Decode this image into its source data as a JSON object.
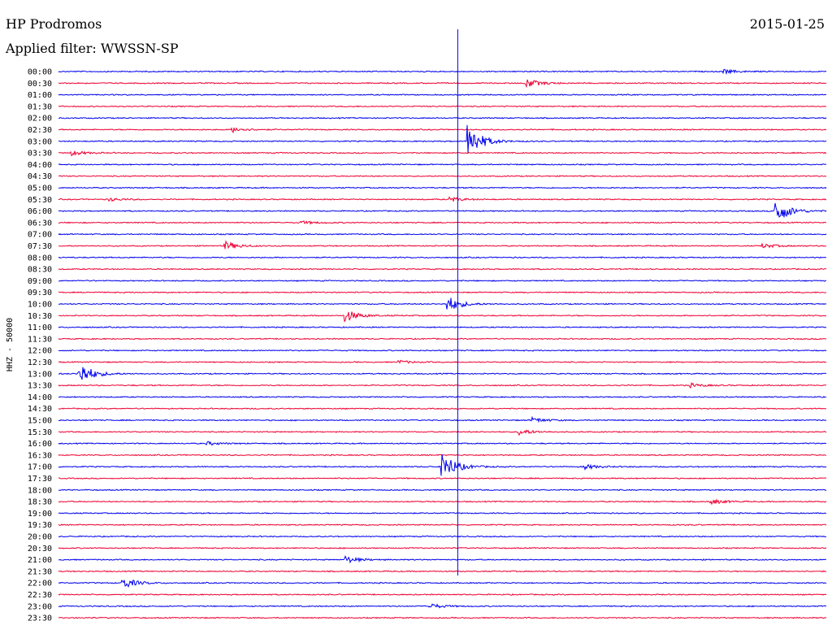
{
  "header": {
    "station": "HP Prodromos",
    "date": "2015-01-25",
    "filter_label": "Applied filter: WWSSN-SP"
  },
  "chart_data": {
    "type": "line",
    "title": "HP Prodromos",
    "subtitle": "Applied filter: WWSSN-SP",
    "ylabel": "HHZ - 50000",
    "xlabel": "",
    "colors": [
      "#0000ee",
      "#ee0033"
    ],
    "grid": false,
    "ticks": [
      "00:00",
      "00:30",
      "01:00",
      "01:30",
      "02:00",
      "02:30",
      "03:00",
      "03:30",
      "04:00",
      "04:30",
      "05:00",
      "05:30",
      "06:00",
      "06:30",
      "07:00",
      "07:30",
      "08:00",
      "08:30",
      "09:00",
      "09:30",
      "10:00",
      "10:30",
      "11:00",
      "11:30",
      "12:00",
      "12:30",
      "13:00",
      "13:30",
      "14:00",
      "14:30",
      "15:00",
      "15:30",
      "16:00",
      "16:30",
      "17:00",
      "17:30",
      "18:00",
      "18:30",
      "19:00",
      "19:30",
      "20:00",
      "20:30",
      "21:00",
      "21:30",
      "22:00",
      "22:30",
      "23:00",
      "23:30"
    ],
    "events": [
      {
        "trace": "00:00",
        "minute": 26.0,
        "amplitude": 0.45
      },
      {
        "trace": "00:30",
        "minute": 18.3,
        "amplitude": 1.0
      },
      {
        "trace": "02:30",
        "minute": 6.8,
        "amplitude": 0.6
      },
      {
        "trace": "03:00",
        "minute": 16.0,
        "amplitude": 4.0
      },
      {
        "trace": "03:30",
        "minute": 0.5,
        "amplitude": 0.55
      },
      {
        "trace": "05:30",
        "minute": 2.0,
        "amplitude": 0.35
      },
      {
        "trace": "05:30",
        "minute": 15.3,
        "amplitude": 0.5
      },
      {
        "trace": "06:00",
        "minute": 28.0,
        "amplitude": 3.0
      },
      {
        "trace": "06:30",
        "minute": 9.5,
        "amplitude": 0.35
      },
      {
        "trace": "07:30",
        "minute": 6.5,
        "amplitude": 1.0
      },
      {
        "trace": "07:30",
        "minute": 27.5,
        "amplitude": 0.5
      },
      {
        "trace": "10:00",
        "minute": 15.2,
        "amplitude": 1.8
      },
      {
        "trace": "10:30",
        "minute": 11.2,
        "amplitude": 1.4
      },
      {
        "trace": "12:30",
        "minute": 13.3,
        "amplitude": 0.35
      },
      {
        "trace": "13:00",
        "minute": 0.8,
        "amplitude": 2.8
      },
      {
        "trace": "13:30",
        "minute": 24.7,
        "amplitude": 0.4
      },
      {
        "trace": "15:00",
        "minute": 18.5,
        "amplitude": 0.6
      },
      {
        "trace": "15:30",
        "minute": 18.0,
        "amplitude": 0.7
      },
      {
        "trace": "16:00",
        "minute": 5.8,
        "amplitude": 0.4
      },
      {
        "trace": "17:00",
        "minute": 15.0,
        "amplitude": 3.2
      },
      {
        "trace": "17:00",
        "minute": 20.5,
        "amplitude": 0.6
      },
      {
        "trace": "18:30",
        "minute": 25.5,
        "amplitude": 0.6
      },
      {
        "trace": "21:00",
        "minute": 11.2,
        "amplitude": 0.8
      },
      {
        "trace": "22:00",
        "minute": 2.5,
        "amplitude": 1.3
      },
      {
        "trace": "23:00",
        "minute": 14.5,
        "amplitude": 0.6
      }
    ],
    "marker": {
      "minute": 15.6,
      "color": "#0000ee"
    }
  }
}
